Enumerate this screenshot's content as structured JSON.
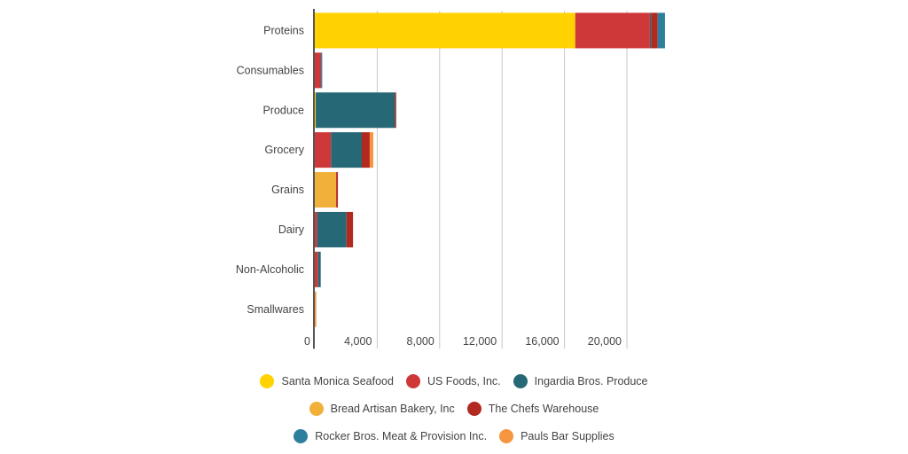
{
  "chart_data": {
    "type": "bar",
    "orientation": "horizontal",
    "stacked": true,
    "categories": [
      "Proteins",
      "Consumables",
      "Produce",
      "Grocery",
      "Grains",
      "Dairy",
      "Non-Alcoholic",
      "Smallwares"
    ],
    "series": [
      {
        "name": "Santa Monica Seafood",
        "color": "#ffd200",
        "values": [
          16690,
          0,
          60,
          0,
          0,
          0,
          0,
          0
        ]
      },
      {
        "name": "US Foods, Inc.",
        "color": "#cf3838",
        "values": [
          4780,
          400,
          0,
          1040,
          0,
          150,
          210,
          0
        ]
      },
      {
        "name": "Ingardia Bros. Produce",
        "color": "#276877",
        "values": [
          80,
          0,
          5080,
          1970,
          0,
          1880,
          170,
          0
        ]
      },
      {
        "name": "Bread Artisan Bakery, Inc",
        "color": "#f0b03a",
        "values": [
          0,
          0,
          0,
          0,
          1370,
          0,
          0,
          0
        ]
      },
      {
        "name": "The Chefs Warehouse",
        "color": "#b1291f",
        "values": [
          420,
          0,
          75,
          510,
          110,
          420,
          0,
          0
        ]
      },
      {
        "name": "Rocker Bros. Meat & Provision Inc.",
        "color": "#2e7f9e",
        "values": [
          470,
          75,
          0,
          0,
          0,
          0,
          0,
          0
        ]
      },
      {
        "name": "Pauls Bar Supplies",
        "color": "#f79540",
        "values": [
          0,
          0,
          0,
          230,
          0,
          0,
          0,
          95
        ]
      }
    ],
    "xticks": [
      "0",
      "4,000",
      "8,000",
      "12,000",
      "16,000",
      "20,000"
    ],
    "xtick_values": [
      0,
      4000,
      8000,
      12000,
      16000,
      20000
    ],
    "xlim": [
      0,
      23000
    ],
    "grid": true,
    "legend_position": "bottom",
    "title": "",
    "xlabel": "",
    "ylabel": ""
  }
}
